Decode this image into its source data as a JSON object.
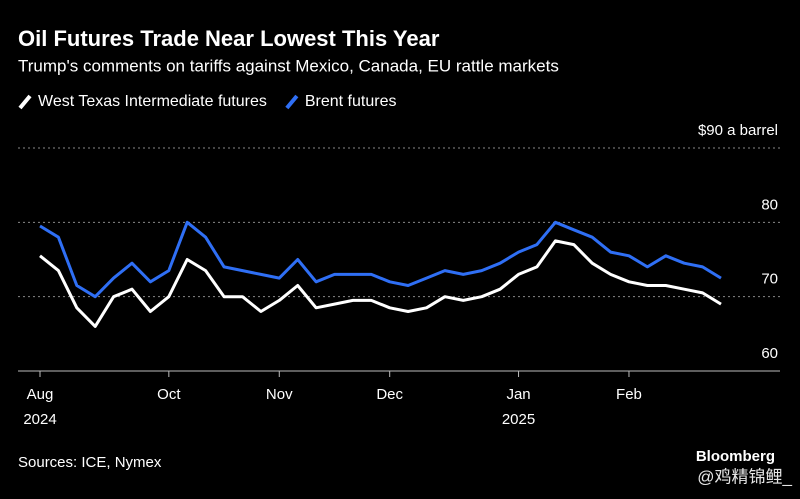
{
  "chart_data": {
    "type": "line",
    "title": "Oil Futures Trade Near Lowest This Year",
    "subtitle": "Trump's comments on tariffs against Mexico, Canada, EU rattle markets",
    "categories": [
      "Aug",
      null,
      null,
      null,
      null,
      null,
      null,
      "Oct",
      null,
      null,
      null,
      null,
      null,
      "Nov",
      null,
      null,
      null,
      null,
      null,
      "Dec",
      null,
      null,
      null,
      null,
      null,
      null,
      "Jan",
      null,
      null,
      null,
      null,
      null,
      "Feb",
      null,
      null,
      null,
      null,
      null
    ],
    "x_year_labels": [
      "2024",
      null,
      null,
      null,
      null,
      null,
      null,
      null,
      null,
      null,
      null,
      null,
      null,
      null,
      null,
      null,
      null,
      null,
      null,
      null,
      null,
      null,
      null,
      null,
      null,
      null,
      "2025",
      null,
      null,
      null,
      null,
      null,
      null,
      null,
      null,
      null,
      null,
      null
    ],
    "series": [
      {
        "name": "West Texas Intermediate futures",
        "color": "#ffffff",
        "values": [
          75.5,
          73.5,
          68.5,
          66,
          70,
          71,
          68,
          70,
          75,
          73.5,
          70,
          70,
          68,
          69.5,
          71.5,
          68.5,
          69,
          69.5,
          69.5,
          68.5,
          68,
          68.5,
          70,
          69.5,
          70,
          71,
          73,
          74,
          77.5,
          77,
          74.5,
          73,
          72,
          71.5,
          71.5,
          71,
          70.5,
          69
        ]
      },
      {
        "name": "Brent futures",
        "color": "#2f6ff5",
        "values": [
          79.5,
          78,
          71.5,
          70,
          72.5,
          74.5,
          72,
          73.5,
          80,
          78,
          74,
          73.5,
          73,
          72.5,
          75,
          72,
          73,
          73,
          73,
          72,
          71.5,
          72.5,
          73.5,
          73,
          73.5,
          74.5,
          76,
          77,
          80,
          79,
          78,
          76,
          75.5,
          74,
          75.5,
          74.5,
          74,
          72.5
        ]
      }
    ],
    "ylim": [
      60,
      90
    ],
    "yticks": [
      60,
      70,
      80,
      {
        "value": 90,
        "label": "$90 a barrel"
      }
    ],
    "grid": true,
    "source": "Sources: ICE, Nymex",
    "brand": "Bloomberg",
    "watermark": "@鸡精锦鲤_"
  }
}
